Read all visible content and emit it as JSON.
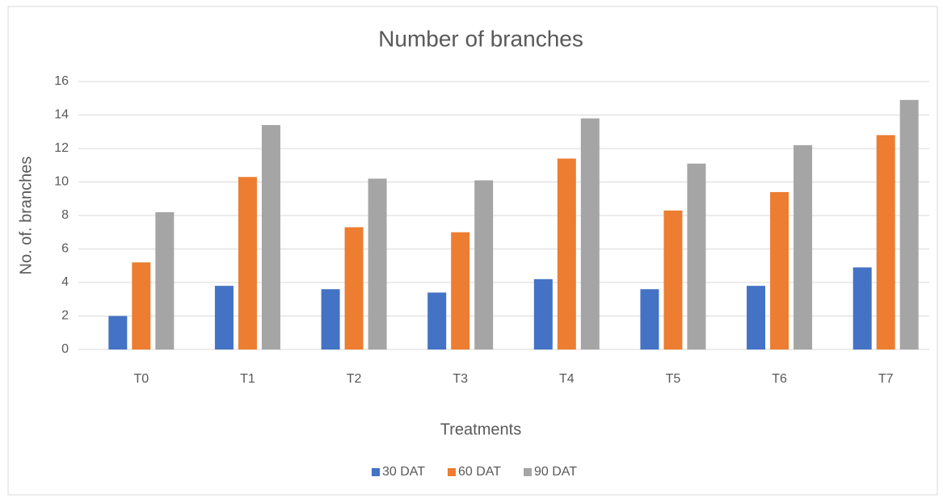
{
  "chart_data": {
    "type": "bar",
    "title": "Number of branches",
    "x_label": "Treatments",
    "y_label": "No. of. branches",
    "categories": [
      "T0",
      "T1",
      "T2",
      "T3",
      "T4",
      "T5",
      "T6",
      "T7"
    ],
    "series": [
      {
        "name": "30 DAT",
        "color": "#4472c4",
        "values": [
          2.0,
          3.8,
          3.6,
          3.4,
          4.2,
          3.6,
          3.8,
          4.9
        ]
      },
      {
        "name": "60 DAT",
        "color": "#ed7d31",
        "values": [
          5.2,
          10.3,
          7.3,
          7.0,
          11.4,
          8.3,
          9.4,
          12.8
        ]
      },
      {
        "name": "90 DAT",
        "color": "#a5a5a5",
        "values": [
          8.2,
          13.4,
          10.2,
          10.1,
          13.8,
          11.1,
          12.2,
          14.9
        ]
      }
    ],
    "ylim": [
      0,
      16
    ],
    "yticks": [
      0,
      2,
      4,
      6,
      8,
      10,
      12,
      14,
      16
    ],
    "grid": true,
    "legend": "bottom"
  }
}
